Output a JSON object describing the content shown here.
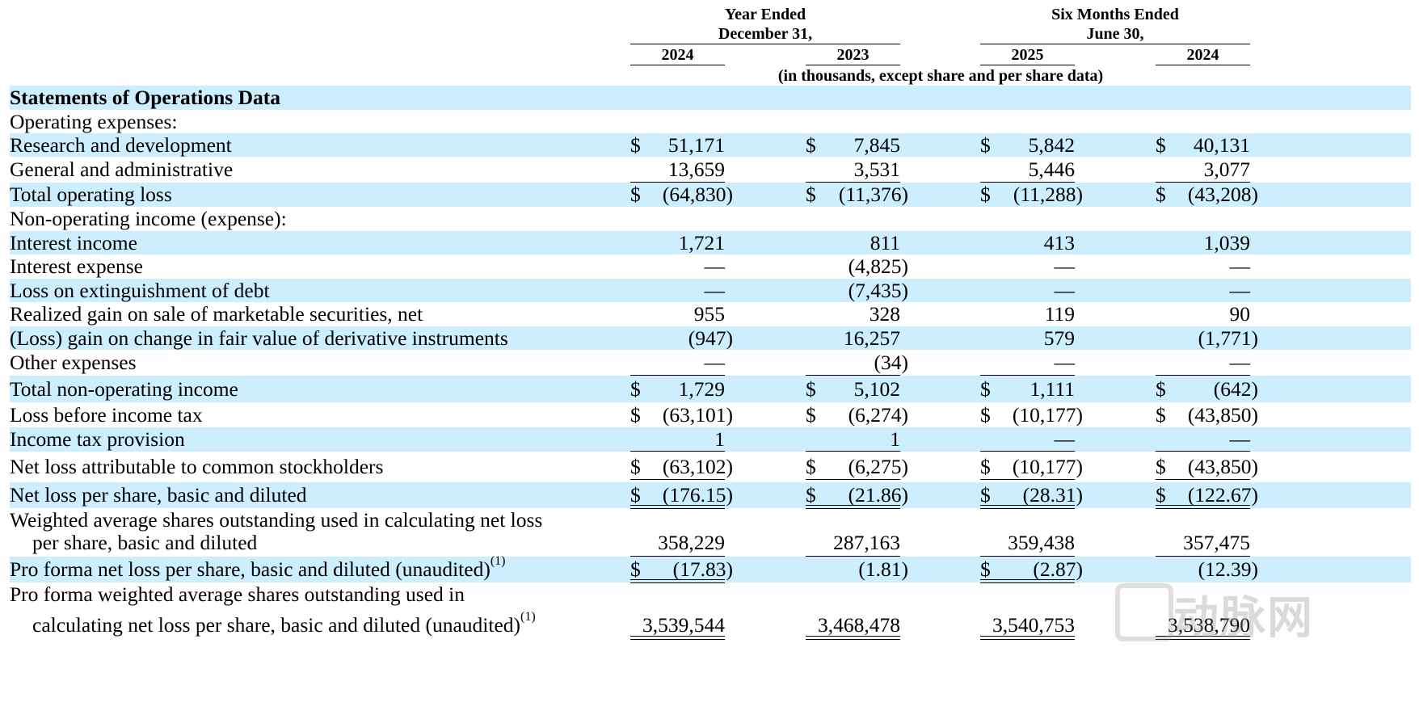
{
  "header": {
    "group1_line1": "Year Ended",
    "group1_line2": "December 31,",
    "group2_line1": "Six Months Ended",
    "group2_line2": "June 30,",
    "years": [
      "2024",
      "2023",
      "2025",
      "2024"
    ],
    "units_note": "(in thousands, except share and per share data)"
  },
  "rows": [
    {
      "label": "Statements of Operations Data",
      "values": [
        "",
        "",
        "",
        ""
      ]
    },
    {
      "label": "Operating expenses:",
      "values": [
        "",
        "",
        "",
        ""
      ]
    },
    {
      "label": "Research and development",
      "values": [
        "51,171",
        "7,845",
        "5,842",
        "40,131"
      ]
    },
    {
      "label": "General and administrative",
      "values": [
        "13,659",
        "3,531",
        "5,446",
        "3,077"
      ]
    },
    {
      "label": "Total operating loss",
      "values": [
        "(64,830)",
        "(11,376)",
        "(11,288)",
        "(43,208)"
      ]
    },
    {
      "label": "Non-operating income (expense):",
      "values": [
        "",
        "",
        "",
        ""
      ]
    },
    {
      "label": "Interest income",
      "values": [
        "1,721",
        "811",
        "413",
        "1,039"
      ]
    },
    {
      "label": "Interest expense",
      "values": [
        "—",
        "(4,825)",
        "—",
        "—"
      ]
    },
    {
      "label": "Loss on extinguishment of debt",
      "values": [
        "—",
        "(7,435)",
        "—",
        "—"
      ]
    },
    {
      "label": "Realized gain on sale of marketable securities, net",
      "values": [
        "955",
        "328",
        "119",
        "90"
      ]
    },
    {
      "label": "(Loss) gain on change in fair value of derivative instruments",
      "values": [
        "(947)",
        "16,257",
        "579",
        "(1,771)"
      ]
    },
    {
      "label": "Other expenses",
      "values": [
        "—",
        "(34)",
        "—",
        "—"
      ]
    },
    {
      "label": "Total non-operating income",
      "values": [
        "1,729",
        "5,102",
        "1,111",
        "(642)"
      ]
    },
    {
      "label": "Loss before income tax",
      "values": [
        "(63,101)",
        "(6,274)",
        "(10,177)",
        "(43,850)"
      ]
    },
    {
      "label": "Income tax provision",
      "values": [
        "1",
        "1",
        "—",
        "—"
      ]
    },
    {
      "label": "Net loss attributable to common stockholders",
      "values": [
        "(63,102)",
        "(6,275)",
        "(10,177)",
        "(43,850)"
      ]
    },
    {
      "label": "Net loss per share, basic and diluted",
      "values": [
        "(176.15)",
        "(21.86)",
        "(28.31)",
        "(122.67)"
      ]
    },
    {
      "label": "Weighted average shares outstanding used in calculating net loss",
      "label2": "per share, basic and diluted",
      "values": [
        "358,229",
        "287,163",
        "359,438",
        "357,475"
      ]
    },
    {
      "label": "Pro forma net loss per share, basic and diluted (unaudited)",
      "sup": "(1)",
      "values": [
        "(17.83)",
        "(1.81)",
        "(2.87)",
        "(12.39)"
      ]
    },
    {
      "label": "Pro forma weighted average shares outstanding used in",
      "label2": "calculating net loss per share, basic and diluted (unaudited)",
      "sup2": "(1)",
      "values": [
        "3,539,544",
        "3,468,478",
        "3,540,753",
        "3,538,790"
      ]
    }
  ],
  "currency_symbol": "$",
  "watermark": "动脉网"
}
